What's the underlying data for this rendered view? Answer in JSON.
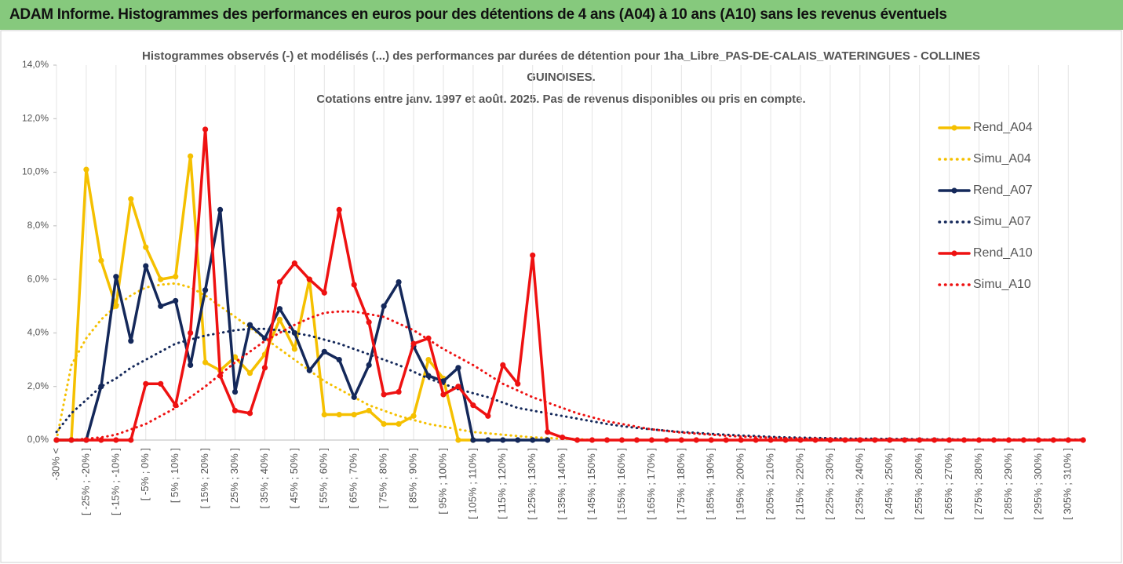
{
  "header": {
    "title": "ADAM Informe. Histogrammes des performances en euros pour des détentions de 4 ans (A04) à 10 ans (A10) sans les revenus éventuels"
  },
  "chart_data": {
    "type": "line",
    "title": [
      "Histogrammes observés (-) et modélisés (...) des performances par durées de détention pour 1ha_Libre_PAS-DE-CALAIS_WATERINGUES - COLLINES",
      "GUINOISES.",
      "Cotations entre janv. 1997 et août. 2025. Pas de revenus disponibles ou pris en compte."
    ],
    "categories": [
      "-30% <",
      null,
      "[ -25% ; -20% ]",
      null,
      "[ -15% ; -10% ]",
      null,
      "[ -5% ; 0% ]",
      null,
      "[ 5% ; 10% ]",
      null,
      "[ 15% ; 20% ]",
      null,
      "[ 25% ; 30% ]",
      null,
      "[ 35% ; 40% ]",
      null,
      "[ 45% ; 50% ]",
      null,
      "[ 55% ; 60% ]",
      null,
      "[ 65% ; 70% ]",
      null,
      "[ 75% ; 80% ]",
      null,
      "[ 85% ; 90% ]",
      null,
      "[ 95% ; 100% ]",
      null,
      "[ 105% ; 110% ]",
      null,
      "[ 115% ; 120% ]",
      null,
      "[ 125% ; 130% ]",
      null,
      "[ 135% ; 140% ]",
      null,
      "[ 145% ; 150% ]",
      null,
      "[ 155% ; 160% ]",
      null,
      "[ 165% ; 170% ]",
      null,
      "[ 175% ; 180% ]",
      null,
      "[ 185% ; 190% ]",
      null,
      "[ 195% ; 200% ]",
      null,
      "[ 205% ; 210% ]",
      null,
      "[ 215% ; 220% ]",
      null,
      "[ 225% ; 230% ]",
      null,
      "[ 235% ; 240% ]",
      null,
      "[ 245% ; 250% ]",
      null,
      "[ 255% ; 260% ]",
      null,
      "[ 265% ; 270% ]",
      null,
      "[ 275% ; 280% ]",
      null,
      "[ 285% ; 290% ]",
      null,
      "[ 295% ; 300% ]",
      null,
      "[ 305% ; 310% ]",
      null
    ],
    "ylim": [
      0,
      14
    ],
    "yticks": [
      {
        "value": 0,
        "label": "0,0%"
      },
      {
        "value": 2,
        "label": "2,0%"
      },
      {
        "value": 4,
        "label": "4,0%"
      },
      {
        "value": 6,
        "label": "6,0%"
      },
      {
        "value": 8,
        "label": "8,0%"
      },
      {
        "value": 10,
        "label": "10,0%"
      },
      {
        "value": 12,
        "label": "12,0%"
      },
      {
        "value": 14,
        "label": "14,0%"
      }
    ],
    "grid": true,
    "legend": "right",
    "series": [
      {
        "name": "Rend_A04",
        "color": "#f5c000",
        "style": "solid",
        "markers": true,
        "values": [
          0,
          0,
          10.1,
          6.7,
          5.0,
          9.0,
          7.2,
          6.0,
          6.1,
          10.6,
          2.9,
          2.6,
          3.1,
          2.5,
          3.2,
          4.5,
          3.4,
          6.0,
          0.95,
          0.95,
          0.95,
          1.1,
          0.6,
          0.6,
          0.9,
          3.0,
          2.3,
          0,
          0,
          null,
          null,
          null,
          null,
          null,
          null,
          null,
          null,
          null,
          null,
          null,
          null,
          null,
          null,
          null,
          null,
          null,
          null,
          null,
          null,
          null,
          null,
          null,
          null,
          null,
          null,
          null,
          null,
          null,
          null,
          null,
          null,
          null,
          null,
          null,
          null,
          null,
          null,
          null,
          null,
          null
        ]
      },
      {
        "name": "Simu_A04",
        "color": "#f5c000",
        "style": "dotted",
        "markers": false,
        "values": [
          0,
          2.8,
          3.8,
          4.5,
          5.0,
          5.4,
          5.7,
          5.8,
          5.85,
          5.7,
          5.4,
          5.0,
          4.6,
          4.2,
          3.8,
          3.4,
          3.0,
          2.6,
          2.2,
          1.9,
          1.6,
          1.3,
          1.1,
          0.9,
          0.75,
          0.6,
          0.5,
          0.4,
          0.3,
          0.25,
          0.2,
          0.15,
          0.1,
          0.08,
          0.05,
          0.04,
          0,
          0,
          0,
          0,
          0,
          0,
          0,
          0,
          0,
          0,
          0,
          0,
          0,
          0,
          0,
          0,
          0,
          0,
          0,
          0,
          0,
          0,
          0,
          0,
          0,
          0,
          0,
          0,
          0,
          0,
          0,
          0,
          0,
          0
        ]
      },
      {
        "name": "Rend_A07",
        "color": "#14285a",
        "style": "solid",
        "markers": true,
        "values": [
          0,
          0,
          0,
          2.0,
          6.1,
          3.7,
          6.5,
          5.0,
          5.2,
          2.8,
          5.6,
          8.6,
          1.8,
          4.3,
          3.8,
          4.9,
          4.0,
          2.6,
          3.3,
          3.0,
          1.6,
          2.8,
          5.0,
          5.9,
          3.5,
          2.4,
          2.2,
          2.7,
          0,
          0,
          0,
          0,
          0,
          0,
          null,
          null,
          null,
          null,
          null,
          null,
          null,
          null,
          null,
          null,
          null,
          null,
          null,
          null,
          null,
          null,
          null,
          null,
          null,
          null,
          null,
          null,
          null,
          null,
          null,
          null,
          null,
          null,
          null,
          null,
          null,
          null,
          null,
          null,
          null,
          null
        ]
      },
      {
        "name": "Simu_A07",
        "color": "#14285a",
        "style": "dotted",
        "markers": false,
        "values": [
          0.3,
          1.0,
          1.5,
          2.0,
          2.3,
          2.7,
          3.0,
          3.3,
          3.6,
          3.75,
          3.9,
          4.0,
          4.1,
          4.15,
          4.15,
          4.1,
          4.0,
          3.9,
          3.75,
          3.6,
          3.4,
          3.2,
          3.0,
          2.8,
          2.55,
          2.3,
          2.1,
          1.9,
          1.75,
          1.6,
          1.4,
          1.2,
          1.1,
          1.0,
          0.9,
          0.8,
          0.7,
          0.6,
          0.52,
          0.45,
          0.4,
          0.35,
          0.3,
          0.27,
          0.23,
          0.2,
          0.17,
          0.15,
          0.12,
          0.1,
          0.09,
          0.08,
          0.07,
          0.06,
          0.05,
          0.05,
          0.04,
          0.04,
          0.03,
          0.03,
          0.03,
          0.02,
          0.02,
          0.02,
          0.02,
          0.02,
          0.02,
          0.02,
          0.02,
          0.02
        ]
      },
      {
        "name": "Rend_A10",
        "color": "#ee1111",
        "style": "solid",
        "markers": true,
        "values": [
          0,
          0,
          0,
          0,
          0,
          0,
          2.1,
          2.1,
          1.3,
          4.0,
          11.6,
          2.4,
          1.1,
          1.0,
          2.7,
          5.9,
          6.6,
          6.0,
          5.5,
          8.6,
          5.8,
          4.4,
          1.7,
          1.8,
          3.6,
          3.8,
          1.7,
          2.0,
          1.3,
          0.9,
          2.8,
          2.1,
          6.9,
          0.3,
          0.1,
          0,
          0,
          0,
          0,
          0,
          0,
          0,
          0,
          0,
          0,
          0,
          0,
          0,
          0,
          0,
          0,
          0,
          0,
          0,
          0,
          0,
          0,
          0,
          0,
          0,
          0,
          0,
          0,
          0,
          0,
          0,
          0,
          0,
          0,
          0
        ]
      },
      {
        "name": "Simu_A10",
        "color": "#ee1111",
        "style": "dotted",
        "markers": false,
        "values": [
          0,
          0,
          0.05,
          0.1,
          0.2,
          0.4,
          0.6,
          0.9,
          1.2,
          1.6,
          2.0,
          2.45,
          2.9,
          3.3,
          3.7,
          4.0,
          4.3,
          4.55,
          4.75,
          4.8,
          4.8,
          4.7,
          4.6,
          4.35,
          4.1,
          3.75,
          3.4,
          3.1,
          2.8,
          2.45,
          2.1,
          1.85,
          1.6,
          1.4,
          1.2,
          1.0,
          0.85,
          0.7,
          0.6,
          0.5,
          0.4,
          0.34,
          0.28,
          0.24,
          0.2,
          0.16,
          0.13,
          0.11,
          0.09,
          0.07,
          0.06,
          0.05,
          0.04,
          0.03,
          0.03,
          0.02,
          0.02,
          0.02,
          0.01,
          0.01,
          0.01,
          0.01,
          0.01,
          0.01,
          0.01,
          0.01,
          0.01,
          0.01,
          0.01,
          0.01
        ]
      }
    ]
  }
}
